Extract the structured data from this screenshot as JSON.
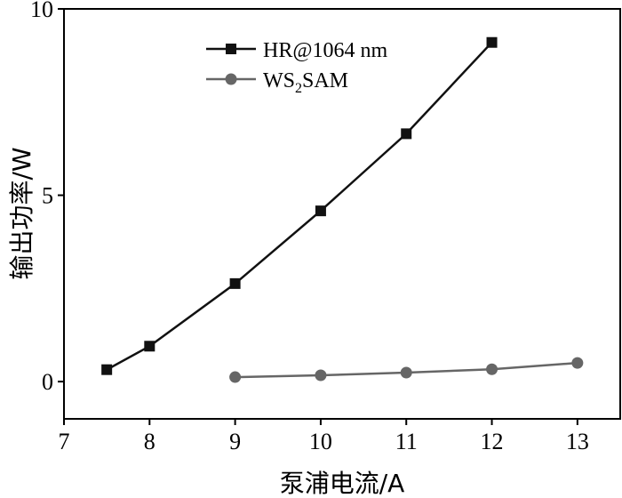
{
  "chart_data": {
    "type": "line",
    "xlabel": "泵浦电流/A",
    "ylabel": "输出功率/W",
    "xlim": [
      7,
      13.5
    ],
    "ylim": [
      -1,
      10
    ],
    "xticks": [
      7,
      8,
      9,
      10,
      11,
      12,
      13
    ],
    "yticks": [
      0,
      5,
      10
    ],
    "grid": false,
    "legend_position": "top-center",
    "series": [
      {
        "name": "HR@1064 nm",
        "marker": "square",
        "color": "#111111",
        "x": [
          7.5,
          8,
          9,
          10,
          11,
          12
        ],
        "y": [
          0.32,
          0.95,
          2.63,
          4.58,
          6.65,
          9.1
        ]
      },
      {
        "name": "WS",
        "name_sub": "2",
        "name_rest": "SAM",
        "marker": "circle",
        "color": "#666666",
        "x": [
          9,
          10,
          11,
          12,
          13
        ],
        "y": [
          0.12,
          0.17,
          0.24,
          0.33,
          0.5
        ]
      }
    ]
  }
}
